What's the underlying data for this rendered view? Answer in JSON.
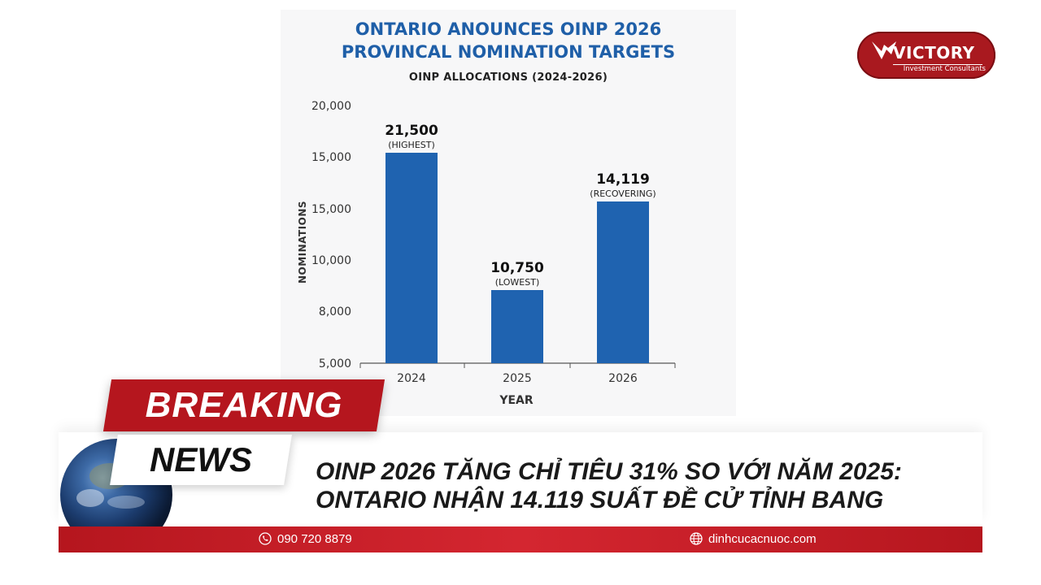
{
  "chart_data": {
    "type": "bar",
    "title": "ONTARIO ANOUNCES OINP 2026\nPROVINCAL NOMINATION TARGETS",
    "subtitle": "OINP ALLOCATIONS (2024-2026)",
    "xlabel": "YEAR",
    "ylabel": "NOMINATIONS",
    "categories": [
      "2024",
      "2025",
      "2026"
    ],
    "values": [
      21500,
      10750,
      14119
    ],
    "bar_labels": [
      "21,500",
      "10,750",
      "14,119"
    ],
    "bar_notes": [
      "(HIGHEST)",
      "(LOWEST)",
      "(RECOVERING)"
    ],
    "y_ticks": [
      "20,000",
      "15,000",
      "15,000",
      "10,000",
      "8,000",
      "5,000"
    ],
    "grid": false,
    "color": "#1f63b0"
  },
  "logo": {
    "name": "VICTORY",
    "tagline": "Investment Consultants"
  },
  "banner": {
    "breaking": "BREAKING",
    "news": "NEWS",
    "headline_line1": "OINP 2026 TĂNG CHỈ TIÊU 31% SO VỚI NĂM 2025:",
    "headline_line2": "ONTARIO NHẬN 14.119 SUẤT ĐỀ CỬ TỈNH BANG"
  },
  "footer": {
    "phone": "090 720 8879",
    "website": "dinhcucacnuoc.com"
  },
  "colors": {
    "brand_red": "#b5161e",
    "title_blue": "#1f5fa8"
  }
}
